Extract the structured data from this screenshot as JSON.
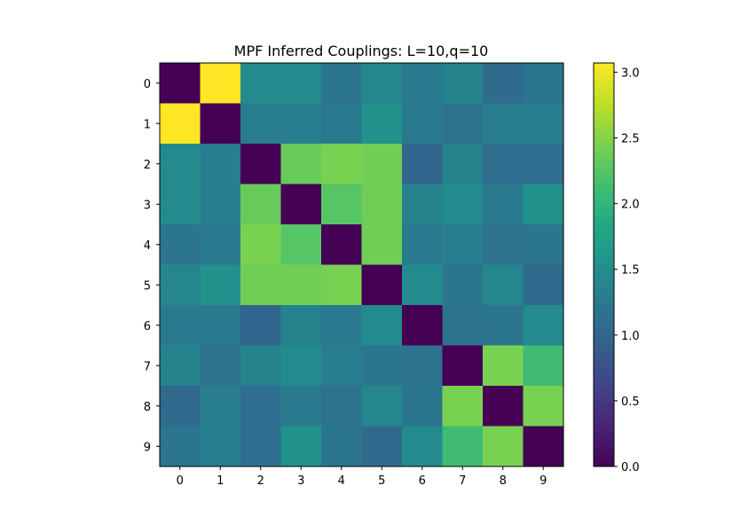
{
  "chart_data": {
    "type": "heatmap",
    "title": "MPF Inferred Couplings: L=10,q=10",
    "xlabel": "",
    "ylabel": "",
    "x_ticks": [
      "0",
      "1",
      "2",
      "3",
      "4",
      "5",
      "6",
      "7",
      "8",
      "9"
    ],
    "y_ticks": [
      "0",
      "1",
      "2",
      "3",
      "4",
      "5",
      "6",
      "7",
      "8",
      "9"
    ],
    "colormap": "viridis",
    "vmin": 0.0,
    "vmax": 3.07,
    "colorbar_ticks": [
      0.0,
      0.5,
      1.0,
      1.5,
      2.0,
      2.5,
      3.0
    ],
    "colorbar_tick_labels": [
      "0.0",
      "0.5",
      "1.0",
      "1.5",
      "2.0",
      "2.5",
      "3.0"
    ],
    "grid": false,
    "colorbar_position": "right",
    "values": [
      [
        0.0,
        3.07,
        1.45,
        1.45,
        1.2,
        1.4,
        1.25,
        1.35,
        1.05,
        1.2
      ],
      [
        3.07,
        0.0,
        1.3,
        1.3,
        1.25,
        1.55,
        1.25,
        1.15,
        1.3,
        1.3
      ],
      [
        1.45,
        1.3,
        0.0,
        2.35,
        2.45,
        2.4,
        1.0,
        1.35,
        1.1,
        1.1
      ],
      [
        1.45,
        1.3,
        2.35,
        0.0,
        2.25,
        2.4,
        1.35,
        1.45,
        1.25,
        1.55
      ],
      [
        1.2,
        1.25,
        2.45,
        2.25,
        0.0,
        2.4,
        1.25,
        1.3,
        1.15,
        1.2
      ],
      [
        1.4,
        1.55,
        2.4,
        2.4,
        2.45,
        0.0,
        1.45,
        1.2,
        1.4,
        1.05
      ],
      [
        1.25,
        1.25,
        1.0,
        1.35,
        1.25,
        1.45,
        0.0,
        1.15,
        1.2,
        1.45
      ],
      [
        1.35,
        1.15,
        1.35,
        1.45,
        1.3,
        1.2,
        1.15,
        0.0,
        2.45,
        2.1
      ],
      [
        1.05,
        1.3,
        1.1,
        1.25,
        1.15,
        1.4,
        1.2,
        2.45,
        0.0,
        2.45
      ],
      [
        1.2,
        1.3,
        1.1,
        1.55,
        1.2,
        1.05,
        1.45,
        2.1,
        2.45,
        0.0
      ]
    ]
  }
}
